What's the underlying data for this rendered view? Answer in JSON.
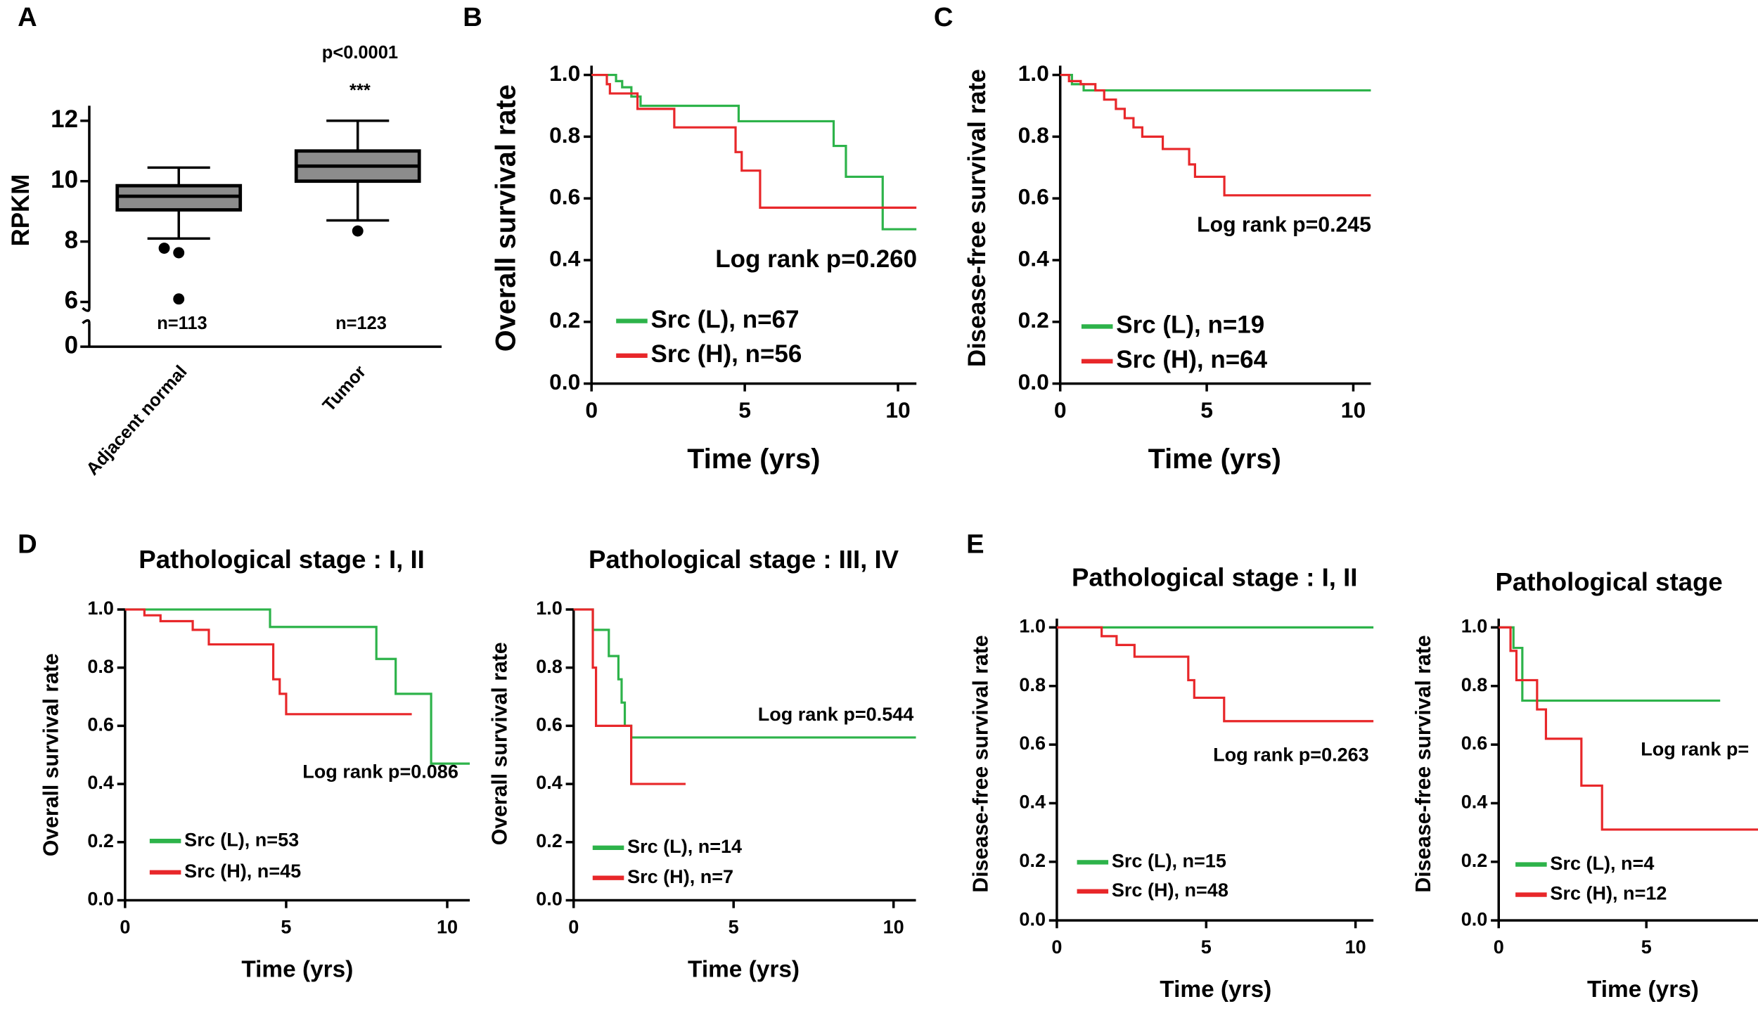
{
  "chart_data": [
    {
      "type": "box",
      "panel": "A",
      "ylabel": "RPKM",
      "categories": [
        "Adjacent normal",
        "Tumor"
      ],
      "boxes": [
        {
          "whisker_low": 8.1,
          "q1": 9.05,
          "median": 9.5,
          "q3": 9.85,
          "whisker_high": 10.45,
          "outliers": [
            7.78,
            7.63,
            6.1
          ]
        },
        {
          "whisker_low": 8.7,
          "q1": 10.0,
          "median": 10.5,
          "q3": 11.0,
          "whisker_high": 12.0,
          "outliers": [
            8.35
          ]
        }
      ],
      "n_labels": [
        "n=113",
        "n=123"
      ],
      "annotations": [
        "p<0.0001",
        "***"
      ],
      "ylim": [
        0,
        12.5
      ],
      "y_break": [
        1,
        5.8
      ],
      "yticks": [
        0,
        6,
        8,
        10,
        12
      ],
      "color": "#8c8c8c"
    },
    {
      "type": "survival",
      "panel": "B",
      "ylabel": "Overall survival rate",
      "xlabel": "Time (yrs)",
      "annotation": "Log rank p=0.260",
      "xlim": [
        0,
        10.6
      ],
      "xticks": [
        0,
        5,
        10
      ],
      "ylim": [
        0,
        1.03
      ],
      "yticks": [
        {
          "value": 0,
          "label": "0.0"
        },
        0.2,
        0.4,
        0.6,
        0.8,
        {
          "value": 1,
          "label": "1.0"
        }
      ],
      "series": [
        {
          "name": "Src (L), n=67",
          "color": "#2db34a",
          "x": [
            0,
            0.8,
            1.0,
            1.3,
            1.6,
            4.8,
            7.9,
            8.3,
            9.5,
            10.6
          ],
          "values": [
            1.0,
            0.98,
            0.96,
            0.93,
            0.9,
            0.85,
            0.77,
            0.67,
            0.5,
            0.5
          ]
        },
        {
          "name": "Src (H), n=56",
          "color": "#e8272a",
          "x": [
            0,
            0.5,
            0.6,
            1.5,
            2.7,
            4.7,
            4.9,
            5.5,
            10.6
          ],
          "values": [
            1.0,
            0.97,
            0.94,
            0.89,
            0.83,
            0.75,
            0.69,
            0.57,
            0.57
          ]
        }
      ]
    },
    {
      "type": "survival",
      "panel": "C",
      "ylabel": "Disease-free survival rate",
      "xlabel": "Time (yrs)",
      "annotation": "Log rank p=0.245",
      "xlim": [
        0,
        10.6
      ],
      "xticks": [
        0,
        5,
        10
      ],
      "ylim": [
        0,
        1.03
      ],
      "yticks": [
        {
          "value": 0,
          "label": "0.0"
        },
        0.2,
        0.4,
        0.6,
        0.8,
        {
          "value": 1,
          "label": "1.0"
        }
      ],
      "series": [
        {
          "name": "Src (L), n=19",
          "color": "#2db34a",
          "x": [
            0,
            0.4,
            0.8,
            10.6
          ],
          "values": [
            1.0,
            0.97,
            0.95,
            0.95
          ]
        },
        {
          "name": "Src (H), n=64",
          "color": "#e8272a",
          "x": [
            0,
            0.3,
            0.7,
            1.2,
            1.5,
            1.9,
            2.2,
            2.5,
            2.8,
            3.5,
            4.4,
            4.6,
            5.6,
            10.6
          ],
          "values": [
            1.0,
            0.98,
            0.97,
            0.95,
            0.92,
            0.89,
            0.86,
            0.83,
            0.8,
            0.76,
            0.71,
            0.67,
            0.61,
            0.61
          ]
        }
      ]
    },
    {
      "type": "survival",
      "panel": "D",
      "title": "Pathological stage : I, II",
      "ylabel": "Overall survival rate",
      "xlabel": "Time (yrs)",
      "annotation": "Log rank p=0.086",
      "xlim": [
        0,
        10.7
      ],
      "xticks": [
        0,
        5,
        10
      ],
      "ylim": [
        0,
        1.0
      ],
      "yticks": [
        {
          "value": 0,
          "label": "0.0"
        },
        0.2,
        0.4,
        0.6,
        0.8,
        {
          "value": 1,
          "label": "1.0"
        }
      ],
      "series": [
        {
          "name": "Src (L), n=53",
          "color": "#2db34a",
          "x": [
            0,
            4.5,
            7.8,
            8.4,
            9.5,
            10.7
          ],
          "values": [
            1.0,
            0.94,
            0.83,
            0.71,
            0.47,
            0.47
          ]
        },
        {
          "name": "Src (H), n=45",
          "color": "#e8272a",
          "x": [
            0,
            0.6,
            1.1,
            2.1,
            2.6,
            4.6,
            4.8,
            5.0,
            8.9
          ],
          "values": [
            1.0,
            0.98,
            0.96,
            0.93,
            0.88,
            0.76,
            0.71,
            0.64,
            0.64
          ]
        }
      ]
    },
    {
      "type": "survival",
      "title": "Pathological stage : III, IV",
      "ylabel": "Overall survival rate",
      "xlabel": "Time (yrs)",
      "annotation": "Log rank p=0.544",
      "xlim": [
        0,
        10.7
      ],
      "xticks": [
        0,
        5,
        10
      ],
      "ylim": [
        0,
        1.0
      ],
      "yticks": [
        {
          "value": 0,
          "label": "0.0"
        },
        0.2,
        0.4,
        0.6,
        0.8,
        {
          "value": 1,
          "label": "1.0"
        }
      ],
      "series": [
        {
          "name": "Src (L), n=14",
          "color": "#2db34a",
          "x": [
            0,
            0.6,
            1.1,
            1.4,
            1.5,
            1.6,
            1.8,
            10.7
          ],
          "values": [
            1.0,
            0.93,
            0.84,
            0.76,
            0.68,
            0.6,
            0.56,
            0.56
          ]
        },
        {
          "name": "Src (H), n=7",
          "color": "#e8272a",
          "x": [
            0,
            0.6,
            0.7,
            1.8,
            3.5
          ],
          "values": [
            1.0,
            0.8,
            0.6,
            0.4,
            0.4
          ]
        }
      ]
    },
    {
      "type": "survival",
      "panel": "E",
      "title": "Pathological stage : I, II",
      "ylabel": "Disease-free survival rate",
      "xlabel": "Time (yrs)",
      "annotation": "Log rank p=0.263",
      "xlim": [
        0,
        10.6
      ],
      "xticks": [
        0,
        5,
        10
      ],
      "ylim": [
        0,
        1.03
      ],
      "yticks": [
        {
          "value": 0,
          "label": "0.0"
        },
        0.2,
        0.4,
        0.6,
        0.8,
        {
          "value": 1,
          "label": "1.0"
        }
      ],
      "series": [
        {
          "name": "Src (L), n=15",
          "color": "#2db34a",
          "x": [
            0,
            10.6
          ],
          "values": [
            1.0,
            1.0
          ]
        },
        {
          "name": "Src (H), n=48",
          "color": "#e8272a",
          "x": [
            0,
            1.5,
            2.0,
            2.6,
            4.4,
            4.6,
            5.6,
            10.6
          ],
          "values": [
            1.0,
            0.97,
            0.94,
            0.9,
            0.82,
            0.76,
            0.68,
            0.68
          ]
        }
      ]
    },
    {
      "type": "survival",
      "title": "Pathological stage",
      "ylabel": "Disease-free survival rate",
      "xlabel": "Time (yrs)",
      "annotation": "Log rank p=",
      "xlim": [
        0,
        8.8
      ],
      "xticks": [
        0,
        5
      ],
      "ylim": [
        0,
        1.03
      ],
      "yticks": [
        {
          "value": 0,
          "label": "0.0"
        },
        0.2,
        0.4,
        0.6,
        0.8,
        {
          "value": 1,
          "label": "1.0"
        }
      ],
      "series": [
        {
          "name": "Src (L), n=4",
          "color": "#2db34a",
          "x": [
            0,
            0.5,
            0.8,
            7.5
          ],
          "values": [
            1.0,
            0.93,
            0.75,
            0.75
          ]
        },
        {
          "name": "Src (H), n=12",
          "color": "#e8272a",
          "x": [
            0,
            0.4,
            0.6,
            1.3,
            1.6,
            2.8,
            3.5,
            8.8
          ],
          "values": [
            1.0,
            0.92,
            0.82,
            0.72,
            0.62,
            0.46,
            0.31,
            0.31
          ]
        }
      ]
    }
  ]
}
